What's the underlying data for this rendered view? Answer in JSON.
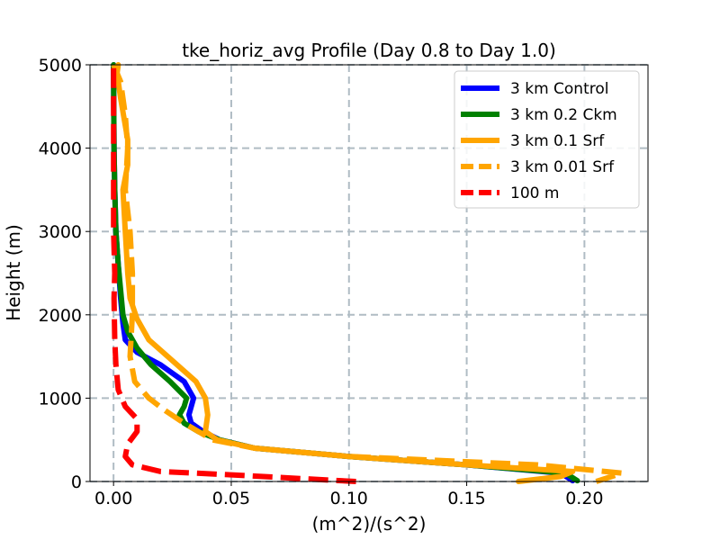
{
  "chart_data": {
    "type": "line",
    "title": "tke_horiz_avg Profile (Day 0.8 to Day 1.0)",
    "xlabel": "(m^2)/(s^2)",
    "ylabel": "Height (m)",
    "xlim": [
      -0.01,
      0.227
    ],
    "ylim": [
      0,
      5000
    ],
    "xticks": [
      0.0,
      0.05,
      0.1,
      0.15,
      0.2
    ],
    "xtick_labels": [
      "0.00",
      "0.05",
      "0.10",
      "0.15",
      "0.20"
    ],
    "yticks": [
      0,
      1000,
      2000,
      3000,
      4000,
      5000
    ],
    "ytick_labels": [
      "0",
      "1000",
      "2000",
      "3000",
      "4000",
      "5000"
    ],
    "grid": true,
    "legend_position": "upper-right",
    "series": [
      {
        "name": "3 km Control",
        "color": "#0000ff",
        "style": "solid",
        "points": [
          [
            0.195,
            10
          ],
          [
            0.19,
            100
          ],
          [
            0.15,
            200
          ],
          [
            0.1,
            300
          ],
          [
            0.06,
            400
          ],
          [
            0.045,
            500
          ],
          [
            0.038,
            600
          ],
          [
            0.033,
            700
          ],
          [
            0.032,
            800
          ],
          [
            0.033,
            900
          ],
          [
            0.034,
            1000
          ],
          [
            0.03,
            1200
          ],
          [
            0.02,
            1400
          ],
          [
            0.01,
            1550
          ],
          [
            0.005,
            1700
          ],
          [
            0.004,
            1900
          ],
          [
            0.003,
            2200
          ],
          [
            0.002,
            2600
          ],
          [
            0.001,
            3000
          ],
          [
            0.0005,
            3500
          ],
          [
            0.0002,
            4000
          ],
          [
            0.0001,
            4500
          ],
          [
            0.0,
            5000
          ]
        ]
      },
      {
        "name": "3 km 0.2 Ckm",
        "color": "#008000",
        "style": "solid",
        "points": [
          [
            0.197,
            10
          ],
          [
            0.192,
            100
          ],
          [
            0.15,
            200
          ],
          [
            0.1,
            300
          ],
          [
            0.06,
            400
          ],
          [
            0.045,
            500
          ],
          [
            0.036,
            600
          ],
          [
            0.03,
            700
          ],
          [
            0.028,
            800
          ],
          [
            0.03,
            900
          ],
          [
            0.031,
            1000
          ],
          [
            0.024,
            1200
          ],
          [
            0.016,
            1400
          ],
          [
            0.01,
            1600
          ],
          [
            0.006,
            1800
          ],
          [
            0.004,
            2000
          ],
          [
            0.003,
            2300
          ],
          [
            0.002,
            2600
          ],
          [
            0.001,
            3000
          ],
          [
            0.0005,
            3500
          ],
          [
            0.0002,
            4000
          ],
          [
            0.0001,
            4500
          ],
          [
            0.0,
            5000
          ]
        ]
      },
      {
        "name": "3 km 0.1 Srf",
        "color": "#ffa500",
        "style": "solid",
        "points": [
          [
            0.172,
            0
          ],
          [
            0.19,
            60
          ],
          [
            0.195,
            120
          ],
          [
            0.15,
            200
          ],
          [
            0.1,
            300
          ],
          [
            0.06,
            400
          ],
          [
            0.044,
            500
          ],
          [
            0.039,
            600
          ],
          [
            0.04,
            800
          ],
          [
            0.039,
            1000
          ],
          [
            0.035,
            1200
          ],
          [
            0.025,
            1450
          ],
          [
            0.015,
            1700
          ],
          [
            0.01,
            1950
          ],
          [
            0.007,
            2200
          ],
          [
            0.006,
            2500
          ],
          [
            0.005,
            3000
          ],
          [
            0.004,
            3500
          ],
          [
            0.006,
            3800
          ],
          [
            0.006,
            4100
          ],
          [
            0.003,
            4600
          ],
          [
            0.0015,
            4900
          ],
          [
            0.002,
            5000
          ]
        ]
      },
      {
        "name": "3 km 0.01 Srf",
        "color": "#ffa500",
        "style": "dashed",
        "points": [
          [
            0.205,
            0
          ],
          [
            0.216,
            100
          ],
          [
            0.18,
            200
          ],
          [
            0.1,
            300
          ],
          [
            0.06,
            400
          ],
          [
            0.042,
            500
          ],
          [
            0.036,
            600
          ],
          [
            0.03,
            700
          ],
          [
            0.022,
            850
          ],
          [
            0.015,
            1000
          ],
          [
            0.009,
            1200
          ],
          [
            0.007,
            1500
          ],
          [
            0.008,
            2000
          ],
          [
            0.008,
            2500
          ],
          [
            0.007,
            3000
          ],
          [
            0.005,
            3500
          ],
          [
            0.006,
            4000
          ],
          [
            0.005,
            4400
          ],
          [
            0.003,
            4800
          ],
          [
            0.0,
            5000
          ]
        ]
      },
      {
        "name": "100 m",
        "color": "#ff0000",
        "style": "dashed",
        "points": [
          [
            0.103,
            0
          ],
          [
            0.05,
            80
          ],
          [
            0.02,
            120
          ],
          [
            0.008,
            200
          ],
          [
            0.005,
            300
          ],
          [
            0.006,
            450
          ],
          [
            0.01,
            600
          ],
          [
            0.01,
            750
          ],
          [
            0.005,
            900
          ],
          [
            0.002,
            1100
          ],
          [
            0.001,
            1400
          ],
          [
            0.0005,
            1700
          ],
          [
            0.0002,
            2200
          ],
          [
            0.0005,
            2500
          ],
          [
            0.0,
            3000
          ],
          [
            0.0,
            3500
          ],
          [
            0.0,
            4000
          ],
          [
            0.0,
            4500
          ],
          [
            0.0,
            5000
          ]
        ]
      }
    ]
  }
}
